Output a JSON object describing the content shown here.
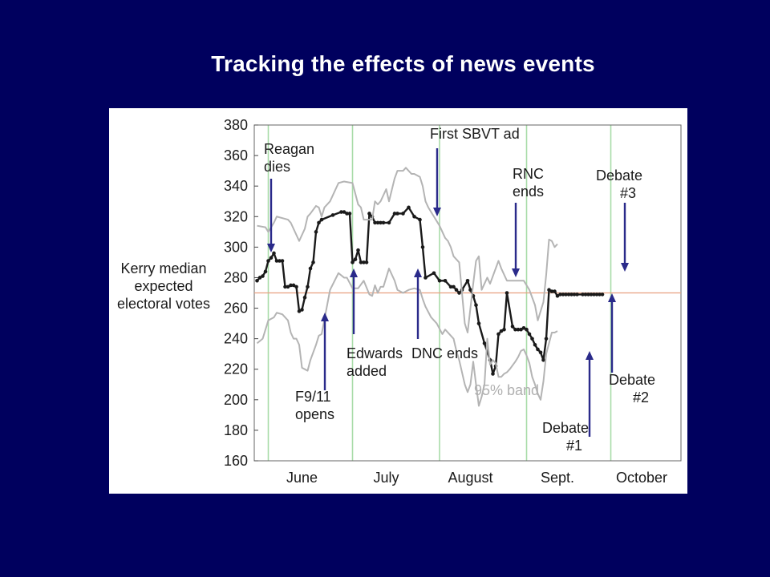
{
  "slide": {
    "title": "Tracking the effects of news events"
  },
  "chart_data": {
    "type": "line",
    "title": "",
    "ylabel": [
      "Kerry median",
      "expected",
      "electoral votes"
    ],
    "xlabel": "",
    "ylim": [
      160,
      380
    ],
    "yticks": [
      160,
      180,
      200,
      220,
      240,
      260,
      280,
      300,
      320,
      340,
      360,
      380
    ],
    "x_unit": "day of year 2004",
    "xlim": [
      148,
      300
    ],
    "month_labels": [
      {
        "label": "June",
        "x": 165
      },
      {
        "label": "July",
        "x": 195
      },
      {
        "label": "August",
        "x": 225
      },
      {
        "label": "Sept.",
        "x": 256
      },
      {
        "label": "October",
        "x": 286
      }
    ],
    "month_boundaries": [
      153,
      183,
      214,
      245,
      275
    ],
    "reference_line": 270,
    "grid": false,
    "colors": {
      "median": "#1a1a1a",
      "band": "#b4b4b4",
      "month_lines": "#a8dca8",
      "reference": "#e8a080",
      "arrows": "#2a2a8a"
    },
    "series": [
      {
        "name": "",
        "role": "median",
        "x": [
          149,
          150,
          151,
          152,
          153,
          154,
          155,
          156,
          157,
          158,
          159,
          160,
          161,
          162,
          163,
          164,
          165,
          166,
          167,
          168,
          169,
          170,
          171,
          172,
          176,
          179,
          180,
          181,
          182,
          183,
          184,
          185,
          186,
          187,
          188,
          189,
          190,
          191,
          192,
          193,
          194,
          196,
          198,
          199,
          201,
          203,
          205,
          207,
          208,
          209,
          212,
          214,
          216,
          218,
          219,
          220,
          221,
          222,
          224,
          225,
          226,
          227,
          228,
          230,
          232,
          233,
          234,
          235,
          236,
          237,
          238,
          240,
          241,
          242,
          243,
          244,
          245,
          246,
          247,
          248,
          249,
          250,
          251,
          252,
          253,
          254,
          255,
          256,
          257,
          258,
          259,
          260,
          261,
          262,
          263,
          265,
          266,
          267,
          268,
          269,
          270,
          271,
          272
        ],
        "y": [
          278,
          280,
          281,
          284,
          291,
          293,
          296,
          291,
          291,
          291,
          274,
          274,
          275,
          275,
          274,
          258,
          259,
          267,
          274,
          286,
          290,
          310,
          316,
          318,
          321,
          323,
          323,
          322,
          322,
          290,
          292,
          298,
          290,
          290,
          290,
          322,
          320,
          316,
          316,
          316,
          316,
          316,
          322,
          322,
          322,
          326,
          320,
          318,
          300,
          280,
          283,
          278,
          278,
          274,
          274,
          272,
          270,
          272,
          278,
          272,
          268,
          262,
          250,
          237,
          226,
          217,
          222,
          243,
          245,
          246,
          270,
          248,
          246,
          246,
          246,
          247,
          246,
          243,
          240,
          236,
          233,
          231,
          226,
          240,
          272,
          271,
          271,
          268,
          269,
          269,
          269,
          269,
          269,
          269,
          269,
          269,
          269,
          269,
          269,
          269,
          269,
          269,
          269
        ]
      },
      {
        "name": "",
        "role": "band-upper",
        "x": [
          149,
          152,
          153,
          155,
          156,
          160,
          161,
          163,
          164,
          166,
          167,
          168,
          170,
          171,
          172,
          173,
          175,
          178,
          180,
          183,
          185,
          186,
          187,
          190,
          191,
          192,
          193,
          194,
          195,
          196,
          198,
          199,
          201,
          202,
          203,
          204,
          205,
          207,
          208,
          209,
          210,
          212,
          214,
          216,
          217,
          218,
          219,
          221,
          222,
          223,
          224,
          226,
          227,
          228,
          229,
          231,
          232,
          234,
          235,
          236,
          238,
          240,
          242,
          244,
          246,
          248,
          249,
          251,
          252,
          253,
          254,
          255,
          256
        ],
        "y": [
          314,
          313,
          310,
          316,
          320,
          318,
          316,
          308,
          304,
          312,
          320,
          322,
          327,
          326,
          320,
          326,
          330,
          342,
          343,
          342,
          328,
          326,
          318,
          318,
          330,
          328,
          330,
          334,
          338,
          330,
          345,
          350,
          350,
          352,
          350,
          348,
          348,
          346,
          340,
          330,
          326,
          320,
          314,
          306,
          304,
          300,
          294,
          290,
          270,
          250,
          244,
          276,
          291,
          294,
          272,
          280,
          276,
          286,
          291,
          286,
          278,
          278,
          278,
          278,
          272,
          262,
          252,
          264,
          282,
          305,
          304,
          300,
          302
        ]
      },
      {
        "name": "",
        "role": "band-lower",
        "x": [
          149,
          151,
          153,
          155,
          156,
          158,
          160,
          161,
          162,
          163,
          164,
          165,
          167,
          168,
          170,
          171,
          172,
          175,
          178,
          180,
          181,
          183,
          185,
          187,
          189,
          190,
          191,
          192,
          193,
          194,
          196,
          198,
          199,
          201,
          203,
          205,
          207,
          208,
          209,
          211,
          213,
          215,
          216,
          218,
          219,
          220,
          221,
          222,
          223,
          224,
          225,
          226,
          227,
          228,
          229,
          230,
          231,
          232,
          233,
          234,
          235,
          236,
          237,
          238,
          239,
          241,
          242,
          243,
          244,
          245,
          246,
          247,
          248,
          249,
          250,
          251,
          252,
          253,
          254,
          255,
          256
        ],
        "y": [
          237,
          240,
          252,
          254,
          257,
          256,
          252,
          244,
          240,
          240,
          236,
          221,
          219,
          226,
          236,
          242,
          243,
          272,
          283,
          280,
          280,
          273,
          273,
          278,
          269,
          268,
          275,
          270,
          274,
          274,
          286,
          278,
          272,
          270,
          272,
          273,
          272,
          266,
          261,
          254,
          250,
          243,
          246,
          242,
          240,
          232,
          226,
          218,
          210,
          205,
          210,
          225,
          210,
          196,
          202,
          210,
          240,
          223,
          226,
          224,
          215,
          215,
          217,
          218,
          220,
          225,
          228,
          232,
          233,
          229,
          224,
          215,
          210,
          204,
          200,
          212,
          230,
          237,
          244,
          244,
          245
        ]
      }
    ],
    "annotations": [
      {
        "lines": [
          "Reagan",
          "dies"
        ],
        "arrow_x": 151,
        "direction": "down"
      },
      {
        "lines": [
          "F9/11",
          "opens"
        ],
        "arrow_x": 165,
        "direction": "up"
      },
      {
        "lines": [
          "Edwards",
          "added"
        ],
        "arrow_x": 180,
        "direction": "up"
      },
      {
        "lines": [
          "DNC ends"
        ],
        "arrow_x": 200,
        "direction": "up"
      },
      {
        "lines": [
          "First SBVT ad"
        ],
        "arrow_x": 205,
        "direction": "down"
      },
      {
        "lines": [
          "RNC",
          "ends"
        ],
        "arrow_x": 242,
        "direction": "down"
      },
      {
        "lines": [
          "Debate",
          "#1"
        ],
        "arrow_x": 273,
        "direction": "up"
      },
      {
        "lines": [
          "Debate",
          "#2"
        ],
        "arrow_x": 280,
        "direction": "up"
      },
      {
        "lines": [
          "Debate",
          "#3"
        ],
        "arrow_x": 290,
        "direction": "down"
      }
    ],
    "band_label": "95% band"
  }
}
